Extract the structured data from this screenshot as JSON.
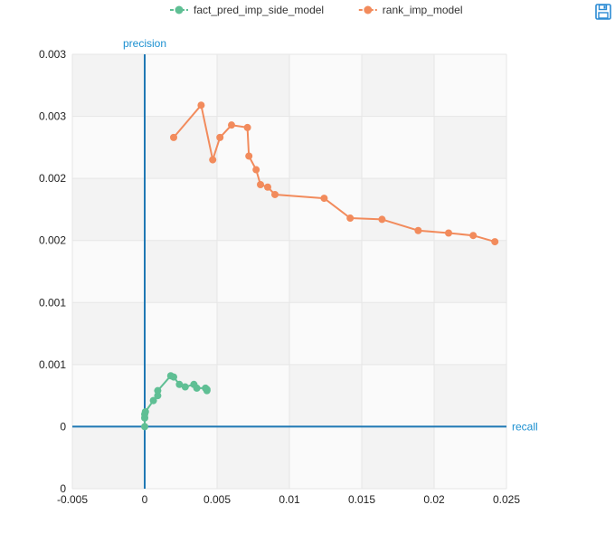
{
  "toolbar": {
    "save_icon": "floppy-disk-icon"
  },
  "chart_data": {
    "type": "line",
    "xlabel": "recall",
    "ylabel": "precision",
    "xlim": [
      -0.005,
      0.025
    ],
    "ylim": [
      -0.0005,
      0.003
    ],
    "x_ticks": [
      -0.005,
      0,
      0.005,
      0.01,
      0.015,
      0.02,
      0.025
    ],
    "x_tick_labels": [
      "-0.005",
      "0",
      "0.005",
      "0.01",
      "0.015",
      "0.02",
      "0.025"
    ],
    "y_ticks": [
      -0.0005,
      0,
      0.0005,
      0.001,
      0.0015,
      0.002,
      0.0025,
      0.003
    ],
    "y_tick_labels": [
      "0",
      "0",
      "0.001",
      "0.001",
      "0.002",
      "0.002",
      "0.003",
      "0.003"
    ],
    "grid": true,
    "legend": "top-center",
    "series": [
      {
        "name": "fact_pred_imp_side_model",
        "color": "#5fbf94",
        "points": [
          [
            0.0,
            0.0
          ],
          [
            0.0,
            7e-05
          ],
          [
            0.0,
            0.0001
          ],
          [
            5e-05,
            0.00012
          ],
          [
            0.0006,
            0.00021
          ],
          [
            0.0009,
            0.00025
          ],
          [
            0.0009,
            0.00029
          ],
          [
            0.0018,
            0.00041
          ],
          [
            0.002,
            0.0004
          ],
          [
            0.0024,
            0.00034
          ],
          [
            0.0028,
            0.00032
          ],
          [
            0.0034,
            0.00034
          ],
          [
            0.0036,
            0.00031
          ],
          [
            0.0042,
            0.00031
          ],
          [
            0.0043,
            0.00029
          ],
          [
            0.0043,
            0.0003
          ]
        ]
      },
      {
        "name": "rank_imp_model",
        "color": "#f28b5c",
        "points": [
          [
            0.002,
            0.00233
          ],
          [
            0.0039,
            0.00259
          ],
          [
            0.0047,
            0.00215
          ],
          [
            0.0052,
            0.00233
          ],
          [
            0.006,
            0.00243
          ],
          [
            0.0071,
            0.00241
          ],
          [
            0.0072,
            0.00218
          ],
          [
            0.0077,
            0.00207
          ],
          [
            0.008,
            0.00195
          ],
          [
            0.0085,
            0.00193
          ],
          [
            0.009,
            0.00187
          ],
          [
            0.0124,
            0.00184
          ],
          [
            0.0142,
            0.00168
          ],
          [
            0.0164,
            0.00167
          ],
          [
            0.0189,
            0.00158
          ],
          [
            0.021,
            0.00156
          ],
          [
            0.0227,
            0.00154
          ],
          [
            0.0242,
            0.00149
          ]
        ]
      }
    ]
  }
}
